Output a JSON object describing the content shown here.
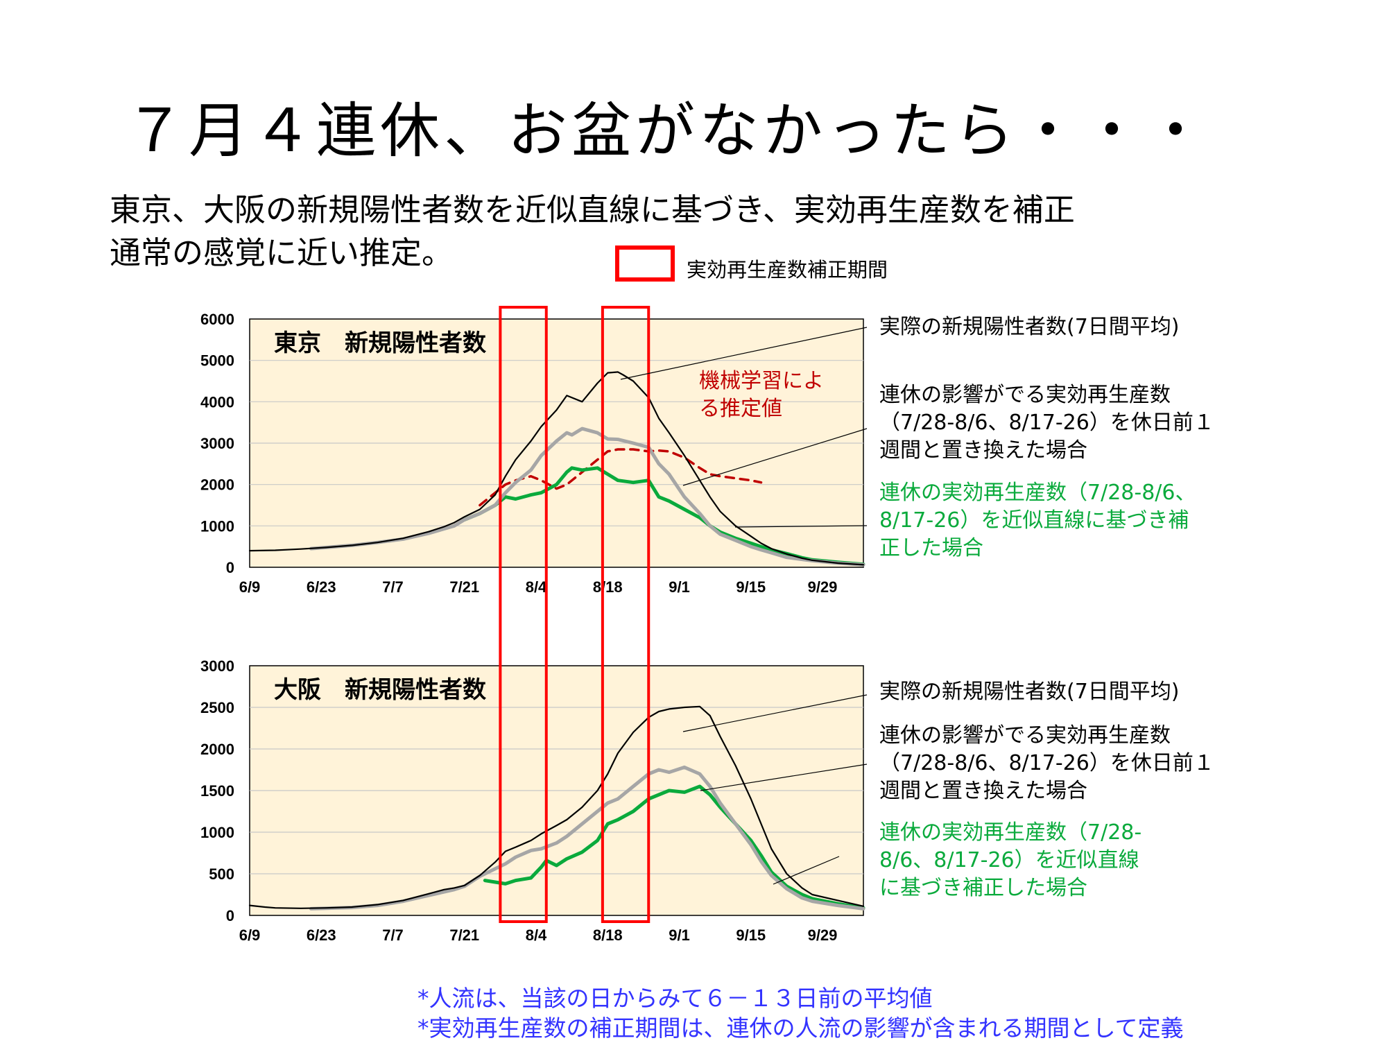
{
  "slide": {
    "title": "７月４連休、お盆がなかったら・・・",
    "subtitle_line1": "東京、大阪の新規陽性者数を近似直線に基づき、実効再生産数を補正",
    "subtitle_line2": "通常の感覚に近い推定。",
    "legend_label": "実効再生産数補正期間",
    "footnote1": "*人流は、当該の日からみて６－１３日前の平均値",
    "footnote2": "*実効再生産数の補正期間は、連休の人流の影響が含まれる期間として定義"
  },
  "colors": {
    "actual": "#000000",
    "replaced": "#a6a6a6",
    "corrected": "#0aaa3c",
    "ml": "#c00000",
    "highlight": "#ff0000",
    "plot_bg": "#fff3d9"
  },
  "annotations": {
    "tokyo": {
      "actual": "実際の新規陽性者数(7日間平均)",
      "replaced": [
        "連休の影響がでる実効再生産数",
        "（7/28-8/6、8/17-26）を休日前１",
        "週間と置き換えた場合"
      ],
      "corrected": [
        "連休の実効再生産数（7/28-8/6、",
        "8/17-26）を近似直線に基づき補",
        "正した場合"
      ],
      "ml": [
        "機械学習によ",
        "る推定値"
      ]
    },
    "osaka": {
      "actual": "実際の新規陽性者数(7日間平均)",
      "replaced": [
        "連休の影響がでる実効再生産数",
        "（7/28-8/6、8/17-26）を休日前１",
        "週間と置き換えた場合"
      ],
      "corrected": [
        "連休の実効再生産数（7/28-",
        "8/6、8/17-26）を近似直線",
        "に基づき補正した場合"
      ]
    }
  },
  "chart_data": [
    {
      "type": "line",
      "title": "東京　新規陽性者数",
      "x_ticks": [
        "6/9",
        "6/23",
        "7/7",
        "7/21",
        "8/4",
        "8/18",
        "9/1",
        "9/15",
        "9/29"
      ],
      "y_ticks": [
        "0",
        "1000",
        "2000",
        "3000",
        "4000",
        "5000",
        "6000"
      ],
      "ylim": [
        0,
        6000
      ],
      "x_range_days": [
        0,
        120
      ],
      "highlight_periods": [
        [
          "7/28",
          "8/6"
        ],
        [
          "8/17",
          "8/26"
        ]
      ],
      "series": [
        {
          "key": "actual",
          "x": [
            0,
            5,
            10,
            15,
            20,
            25,
            30,
            35,
            38,
            40,
            42,
            45,
            48,
            50,
            52,
            55,
            57,
            60,
            62,
            65,
            68,
            70,
            72,
            73,
            75,
            78,
            80,
            82,
            85,
            88,
            90,
            92,
            95,
            98,
            100,
            102,
            105,
            108,
            110,
            115,
            120
          ],
          "values": [
            400,
            410,
            440,
            480,
            530,
            600,
            700,
            860,
            980,
            1080,
            1220,
            1400,
            1750,
            2200,
            2600,
            3050,
            3400,
            3800,
            4150,
            4000,
            4450,
            4700,
            4720,
            4650,
            4500,
            4100,
            3600,
            3250,
            2700,
            2100,
            1700,
            1350,
            1000,
            750,
            580,
            450,
            320,
            220,
            170,
            100,
            60
          ]
        },
        {
          "key": "replaced",
          "x": [
            12,
            15,
            20,
            25,
            30,
            35,
            40,
            42,
            45,
            48,
            50,
            52,
            55,
            57,
            60,
            62,
            63,
            65,
            68,
            70,
            72,
            75,
            78,
            80,
            82,
            85,
            88,
            90,
            92,
            95,
            98,
            100,
            102,
            105,
            108,
            110,
            115,
            120
          ],
          "values": [
            450,
            480,
            530,
            600,
            680,
            820,
            1000,
            1150,
            1300,
            1500,
            1800,
            2050,
            2350,
            2700,
            3050,
            3250,
            3200,
            3350,
            3250,
            3100,
            3090,
            3000,
            2900,
            2500,
            2250,
            1700,
            1300,
            1000,
            800,
            650,
            500,
            420,
            350,
            240,
            190,
            160,
            100,
            60
          ]
        },
        {
          "key": "corrected",
          "x": [
            42,
            45,
            48,
            50,
            52,
            55,
            57,
            60,
            62,
            63,
            65,
            68,
            70,
            72,
            75,
            78,
            80,
            82,
            85,
            88,
            90,
            92,
            95,
            98,
            100,
            102,
            105,
            108,
            110,
            115,
            120
          ],
          "values": [
            1150,
            1300,
            1500,
            1700,
            1650,
            1750,
            1800,
            2000,
            2300,
            2400,
            2350,
            2400,
            2250,
            2100,
            2050,
            2100,
            1700,
            1600,
            1400,
            1200,
            1000,
            850,
            700,
            580,
            500,
            420,
            330,
            230,
            180,
            120,
            70
          ]
        },
        {
          "key": "ml",
          "x": [
            45,
            48,
            50,
            52,
            55,
            57,
            60,
            62,
            65,
            68,
            70,
            72,
            75,
            78,
            80,
            82,
            85,
            88,
            90,
            92,
            95,
            98,
            100
          ],
          "values": [
            1500,
            1800,
            2000,
            2100,
            2200,
            2100,
            1900,
            2000,
            2300,
            2600,
            2800,
            2850,
            2850,
            2800,
            2820,
            2800,
            2650,
            2400,
            2250,
            2200,
            2150,
            2100,
            2050
          ]
        }
      ]
    },
    {
      "type": "line",
      "title": "大阪　新規陽性者数",
      "x_ticks": [
        "6/9",
        "6/23",
        "7/7",
        "7/21",
        "8/4",
        "8/18",
        "9/1",
        "9/15",
        "9/29"
      ],
      "y_ticks": [
        "0",
        "500",
        "1000",
        "1500",
        "2000",
        "2500",
        "3000"
      ],
      "ylim": [
        0,
        3000
      ],
      "x_range_days": [
        0,
        120
      ],
      "highlight_periods": [
        [
          "7/28",
          "8/6"
        ],
        [
          "8/17",
          "8/26"
        ]
      ],
      "series": [
        {
          "key": "actual",
          "x": [
            0,
            3,
            5,
            10,
            15,
            20,
            25,
            30,
            35,
            38,
            40,
            42,
            45,
            48,
            50,
            52,
            55,
            57,
            60,
            62,
            65,
            68,
            70,
            72,
            75,
            78,
            80,
            82,
            85,
            88,
            90,
            92,
            95,
            98,
            100,
            102,
            105,
            108,
            110,
            115,
            120
          ],
          "values": [
            120,
            100,
            90,
            85,
            90,
            100,
            130,
            180,
            260,
            310,
            330,
            360,
            480,
            640,
            770,
            820,
            900,
            980,
            1080,
            1150,
            1300,
            1500,
            1700,
            1950,
            2200,
            2380,
            2450,
            2480,
            2500,
            2510,
            2400,
            2150,
            1800,
            1400,
            1100,
            800,
            500,
            330,
            250,
            180,
            110
          ]
        },
        {
          "key": "replaced",
          "x": [
            12,
            15,
            20,
            25,
            30,
            35,
            40,
            42,
            45,
            48,
            50,
            52,
            55,
            57,
            60,
            62,
            65,
            68,
            70,
            72,
            75,
            78,
            80,
            82,
            85,
            88,
            90,
            92,
            95,
            98,
            100,
            102,
            105,
            108,
            110,
            115,
            120
          ],
          "values": [
            80,
            85,
            95,
            120,
            170,
            240,
            310,
            350,
            470,
            560,
            620,
            700,
            780,
            800,
            870,
            950,
            1100,
            1250,
            1350,
            1400,
            1550,
            1700,
            1750,
            1720,
            1780,
            1700,
            1550,
            1350,
            1100,
            850,
            650,
            480,
            320,
            210,
            170,
            120,
            80
          ]
        },
        {
          "key": "corrected",
          "x": [
            46,
            48,
            50,
            52,
            55,
            57,
            58,
            60,
            62,
            65,
            68,
            70,
            72,
            75,
            78,
            80,
            82,
            85,
            88,
            90,
            92,
            95,
            98,
            100,
            102,
            105,
            108,
            110,
            115,
            120
          ],
          "values": [
            420,
            400,
            380,
            420,
            450,
            580,
            660,
            600,
            680,
            760,
            900,
            1100,
            1150,
            1250,
            1400,
            1450,
            1500,
            1480,
            1550,
            1450,
            1300,
            1100,
            900,
            720,
            520,
            350,
            250,
            200,
            140,
            90
          ]
        }
      ]
    }
  ]
}
